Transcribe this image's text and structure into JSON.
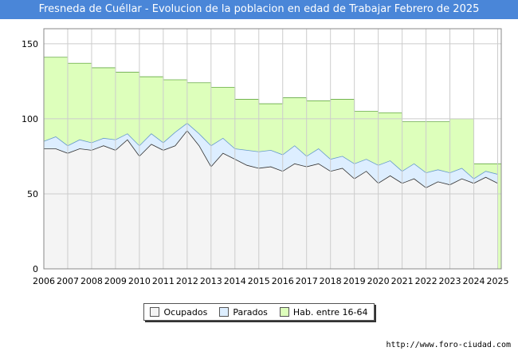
{
  "title": "Fresneda de Cuéllar - Evolucion de la poblacion en edad de Trabajar Febrero de 2025",
  "source": "http://www.foro-ciudad.com",
  "colors": {
    "title_bg": "#4a86d8",
    "hab": "#ddffbb",
    "hab_line": "#66aa44",
    "parados": "#ddeeff",
    "parados_line": "#6699cc",
    "ocupados": "#f4f4f4",
    "ocupados_line": "#333333",
    "grid": "#cccccc"
  },
  "chart_data": {
    "type": "area",
    "title": "Fresneda de Cuéllar - Evolucion de la poblacion en edad de Trabajar Febrero de 2025",
    "xlabel": "",
    "ylabel": "",
    "xlim": [
      2006,
      2025.15
    ],
    "ylim": [
      0,
      160
    ],
    "x_ticks": [
      "2006",
      "2007",
      "2008",
      "2009",
      "2010",
      "2011",
      "2012",
      "2013",
      "2014",
      "2015",
      "2016",
      "2017",
      "2018",
      "2019",
      "2020",
      "2021",
      "2022",
      "2023",
      "2024",
      "2025"
    ],
    "y_ticks": [
      0,
      50,
      100,
      150
    ],
    "grid": true,
    "legend_position": "bottom",
    "series": [
      {
        "name": "Hab. entre 16-64",
        "x": [
          2006,
          2007,
          2008,
          2009,
          2010,
          2011,
          2012,
          2013,
          2014,
          2015,
          2016,
          2017,
          2018,
          2019,
          2020,
          2021,
          2022,
          2023,
          2024
        ],
        "values": [
          141,
          137,
          134,
          131,
          128,
          126,
          124,
          121,
          113,
          110,
          114,
          112,
          113,
          105,
          104,
          98,
          98,
          100,
          70
        ]
      },
      {
        "name": "Parados",
        "x": [
          2006,
          2006.5,
          2007,
          2007.5,
          2008,
          2008.5,
          2009,
          2009.5,
          2010,
          2010.5,
          2011,
          2011.5,
          2012,
          2012.5,
          2013,
          2013.5,
          2014,
          2014.5,
          2015,
          2015.5,
          2016,
          2016.5,
          2017,
          2017.5,
          2018,
          2018.5,
          2019,
          2019.5,
          2020,
          2020.5,
          2021,
          2021.5,
          2022,
          2022.5,
          2023,
          2023.5,
          2024,
          2024.5,
          2025
        ],
        "values": [
          85,
          88,
          82,
          86,
          84,
          87,
          86,
          90,
          82,
          90,
          84,
          91,
          97,
          90,
          82,
          87,
          80,
          79,
          78,
          79,
          76,
          82,
          75,
          80,
          73,
          75,
          70,
          73,
          69,
          72,
          65,
          70,
          64,
          66,
          64,
          67,
          60,
          65,
          63
        ]
      },
      {
        "name": "Ocupados",
        "x": [
          2006,
          2006.5,
          2007,
          2007.5,
          2008,
          2008.5,
          2009,
          2009.5,
          2010,
          2010.5,
          2011,
          2011.5,
          2012,
          2012.5,
          2013,
          2013.5,
          2014,
          2014.5,
          2015,
          2015.5,
          2016,
          2016.5,
          2017,
          2017.5,
          2018,
          2018.5,
          2019,
          2019.5,
          2020,
          2020.5,
          2021,
          2021.5,
          2022,
          2022.5,
          2023,
          2023.5,
          2024,
          2024.5,
          2025
        ],
        "values": [
          80,
          80,
          77,
          80,
          79,
          82,
          79,
          86,
          75,
          83,
          79,
          82,
          92,
          82,
          68,
          77,
          73,
          69,
          67,
          68,
          65,
          70,
          68,
          70,
          65,
          67,
          60,
          65,
          57,
          62,
          57,
          60,
          54,
          58,
          56,
          60,
          57,
          61,
          57
        ]
      }
    ]
  }
}
